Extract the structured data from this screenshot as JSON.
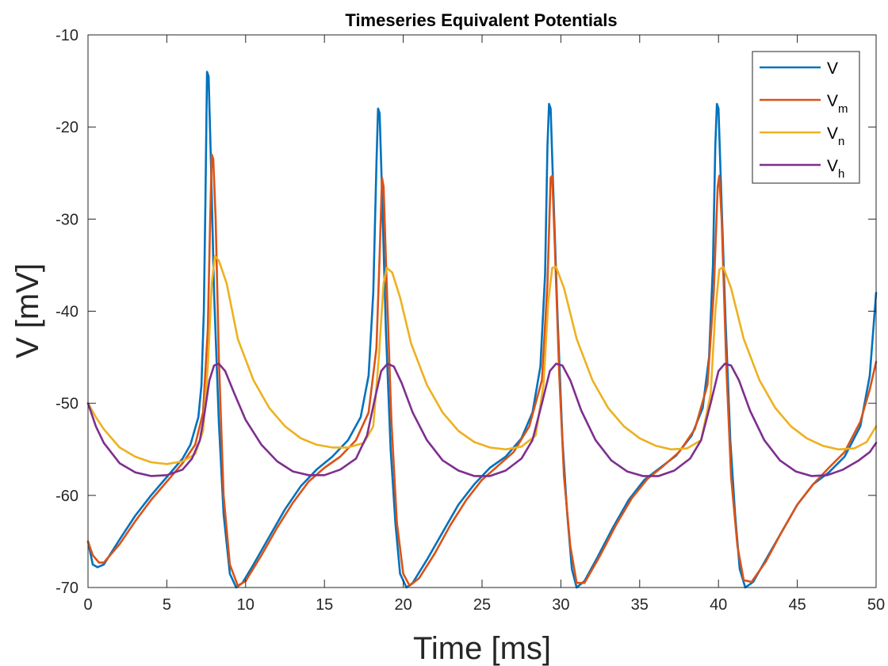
{
  "chart_data": {
    "type": "line",
    "title": "Timeseries Equivalent Potentials",
    "xlabel": "Time [ms]",
    "ylabel": "V [mV]",
    "xlim": [
      0,
      50
    ],
    "ylim": [
      -70,
      -10
    ],
    "xticks": [
      0,
      5,
      10,
      15,
      20,
      25,
      30,
      35,
      40,
      45,
      50
    ],
    "yticks": [
      -70,
      -60,
      -50,
      -40,
      -30,
      -20,
      -10
    ],
    "xtick_labels": [
      "0",
      "5",
      "10",
      "15",
      "20",
      "25",
      "30",
      "35",
      "40",
      "45",
      "50"
    ],
    "ytick_labels": [
      "-70",
      "-60",
      "-50",
      "-40",
      "-30",
      "-20",
      "-10"
    ],
    "grid": false,
    "legend_position": "top-right",
    "series": [
      {
        "name": "V",
        "legend_main": "V",
        "legend_sub": "",
        "color": "#0072BD",
        "points": [
          [
            0,
            -65
          ],
          [
            0.3,
            -67.5
          ],
          [
            0.6,
            -67.8
          ],
          [
            1,
            -67.5
          ],
          [
            2,
            -64.8
          ],
          [
            3,
            -62.2
          ],
          [
            4,
            -60
          ],
          [
            5,
            -58
          ],
          [
            6,
            -56
          ],
          [
            6.5,
            -54.5
          ],
          [
            7,
            -51.5
          ],
          [
            7.2,
            -48
          ],
          [
            7.35,
            -40
          ],
          [
            7.45,
            -28
          ],
          [
            7.55,
            -14
          ],
          [
            7.65,
            -14.5
          ],
          [
            7.8,
            -24
          ],
          [
            8,
            -38
          ],
          [
            8.3,
            -52
          ],
          [
            8.6,
            -62
          ],
          [
            9,
            -68.5
          ],
          [
            9.4,
            -70
          ],
          [
            9.8,
            -69.5
          ],
          [
            10.5,
            -67.5
          ],
          [
            11.5,
            -64.5
          ],
          [
            12.5,
            -61.5
          ],
          [
            13.5,
            -59
          ],
          [
            14.5,
            -57.2
          ],
          [
            15.5,
            -55.8
          ],
          [
            16.5,
            -54
          ],
          [
            17.3,
            -51.5
          ],
          [
            17.8,
            -47
          ],
          [
            18.1,
            -38
          ],
          [
            18.3,
            -24
          ],
          [
            18.4,
            -18
          ],
          [
            18.5,
            -18.5
          ],
          [
            18.65,
            -27
          ],
          [
            18.9,
            -42
          ],
          [
            19.2,
            -55
          ],
          [
            19.5,
            -63
          ],
          [
            19.8,
            -68.5
          ],
          [
            20.2,
            -70
          ],
          [
            20.6,
            -69.5
          ],
          [
            21.5,
            -67
          ],
          [
            22.5,
            -64
          ],
          [
            23.5,
            -61
          ],
          [
            24.5,
            -58.8
          ],
          [
            25.5,
            -57
          ],
          [
            26.5,
            -55.8
          ],
          [
            27.5,
            -53.8
          ],
          [
            28.2,
            -51
          ],
          [
            28.7,
            -46
          ],
          [
            29,
            -36
          ],
          [
            29.15,
            -22
          ],
          [
            29.25,
            -17.5
          ],
          [
            29.35,
            -18
          ],
          [
            29.5,
            -26
          ],
          [
            29.8,
            -41
          ],
          [
            30.1,
            -54
          ],
          [
            30.4,
            -62
          ],
          [
            30.7,
            -68
          ],
          [
            31,
            -70
          ],
          [
            31.5,
            -69.3
          ],
          [
            32.3,
            -66.8
          ],
          [
            33.3,
            -63.5
          ],
          [
            34.3,
            -60.5
          ],
          [
            35.3,
            -58.3
          ],
          [
            36.3,
            -57
          ],
          [
            37.3,
            -55.7
          ],
          [
            38.3,
            -53.5
          ],
          [
            39,
            -50.5
          ],
          [
            39.4,
            -45
          ],
          [
            39.65,
            -35
          ],
          [
            39.8,
            -22
          ],
          [
            39.9,
            -17.5
          ],
          [
            40,
            -18
          ],
          [
            40.15,
            -26
          ],
          [
            40.45,
            -41
          ],
          [
            40.75,
            -54
          ],
          [
            41.05,
            -62
          ],
          [
            41.35,
            -68
          ],
          [
            41.7,
            -70
          ],
          [
            42.2,
            -69.4
          ],
          [
            43,
            -67
          ],
          [
            44,
            -64
          ],
          [
            45,
            -61
          ],
          [
            46,
            -58.8
          ],
          [
            47,
            -57.5
          ],
          [
            48,
            -55.8
          ],
          [
            49,
            -52.5
          ],
          [
            49.6,
            -47
          ],
          [
            50,
            -38
          ]
        ]
      },
      {
        "name": "V_m",
        "legend_main": "V",
        "legend_sub": "m",
        "color": "#D95319",
        "points": [
          [
            0,
            -65
          ],
          [
            0.3,
            -66.5
          ],
          [
            0.7,
            -67.3
          ],
          [
            1,
            -67.3
          ],
          [
            2,
            -65.3
          ],
          [
            3,
            -62.8
          ],
          [
            4,
            -60.5
          ],
          [
            5,
            -58.5
          ],
          [
            6,
            -56.5
          ],
          [
            6.8,
            -54.5
          ],
          [
            7.3,
            -51
          ],
          [
            7.6,
            -42
          ],
          [
            7.75,
            -30
          ],
          [
            7.85,
            -23
          ],
          [
            7.95,
            -23.5
          ],
          [
            8.1,
            -30
          ],
          [
            8.3,
            -45
          ],
          [
            8.6,
            -60
          ],
          [
            9,
            -67.5
          ],
          [
            9.5,
            -69.8
          ],
          [
            10,
            -69.3
          ],
          [
            11,
            -66.5
          ],
          [
            12,
            -63.5
          ],
          [
            13,
            -60.8
          ],
          [
            14,
            -58.5
          ],
          [
            15,
            -57
          ],
          [
            16,
            -55.8
          ],
          [
            17,
            -54
          ],
          [
            17.8,
            -51
          ],
          [
            18.3,
            -44
          ],
          [
            18.5,
            -34
          ],
          [
            18.65,
            -25.5
          ],
          [
            18.75,
            -26.5
          ],
          [
            18.95,
            -37
          ],
          [
            19.25,
            -52
          ],
          [
            19.6,
            -63
          ],
          [
            20,
            -68.5
          ],
          [
            20.4,
            -69.8
          ],
          [
            21,
            -69
          ],
          [
            22,
            -66.3
          ],
          [
            23,
            -63.2
          ],
          [
            24,
            -60.5
          ],
          [
            25,
            -58.3
          ],
          [
            26,
            -56.8
          ],
          [
            27,
            -55.3
          ],
          [
            28,
            -52.5
          ],
          [
            28.8,
            -47.5
          ],
          [
            29.15,
            -37
          ],
          [
            29.35,
            -25.5
          ],
          [
            29.45,
            -25.3
          ],
          [
            29.6,
            -32
          ],
          [
            29.9,
            -47
          ],
          [
            30.2,
            -58
          ],
          [
            30.6,
            -65.5
          ],
          [
            31,
            -69.5
          ],
          [
            31.5,
            -69.5
          ],
          [
            32.5,
            -66.5
          ],
          [
            33.5,
            -63.2
          ],
          [
            34.5,
            -60.3
          ],
          [
            35.5,
            -58.2
          ],
          [
            36.5,
            -56.8
          ],
          [
            37.5,
            -55.3
          ],
          [
            38.5,
            -52.8
          ],
          [
            39.3,
            -48
          ],
          [
            39.7,
            -38
          ],
          [
            39.95,
            -26.5
          ],
          [
            40.05,
            -25.3
          ],
          [
            40.2,
            -30
          ],
          [
            40.5,
            -46
          ],
          [
            40.8,
            -58
          ],
          [
            41.2,
            -65.5
          ],
          [
            41.6,
            -69.2
          ],
          [
            42.1,
            -69.4
          ],
          [
            43,
            -67.2
          ],
          [
            44,
            -64
          ],
          [
            45,
            -61
          ],
          [
            46,
            -58.8
          ],
          [
            47,
            -57
          ],
          [
            48,
            -55.3
          ],
          [
            49,
            -52
          ],
          [
            49.6,
            -48.5
          ],
          [
            50,
            -45.5
          ]
        ]
      },
      {
        "name": "V_n",
        "legend_main": "V",
        "legend_sub": "n",
        "color": "#EDB120",
        "points": [
          [
            0,
            -50
          ],
          [
            0.5,
            -51.5
          ],
          [
            1,
            -52.8
          ],
          [
            2,
            -54.8
          ],
          [
            3,
            -55.8
          ],
          [
            4,
            -56.4
          ],
          [
            5,
            -56.6
          ],
          [
            6,
            -56.3
          ],
          [
            6.8,
            -55.5
          ],
          [
            7.3,
            -53
          ],
          [
            7.6,
            -46
          ],
          [
            7.85,
            -37
          ],
          [
            8.05,
            -34
          ],
          [
            8.3,
            -34.5
          ],
          [
            8.8,
            -37
          ],
          [
            9.5,
            -43
          ],
          [
            10.5,
            -47.5
          ],
          [
            11.5,
            -50.5
          ],
          [
            12.5,
            -52.5
          ],
          [
            13.5,
            -53.8
          ],
          [
            14.5,
            -54.5
          ],
          [
            15.5,
            -54.8
          ],
          [
            16.5,
            -54.8
          ],
          [
            17.5,
            -54.3
          ],
          [
            18.1,
            -52.5
          ],
          [
            18.45,
            -45
          ],
          [
            18.75,
            -37
          ],
          [
            18.95,
            -35.3
          ],
          [
            19.3,
            -35.8
          ],
          [
            19.8,
            -38.5
          ],
          [
            20.5,
            -43.5
          ],
          [
            21.5,
            -48
          ],
          [
            22.5,
            -51
          ],
          [
            23.5,
            -53
          ],
          [
            24.5,
            -54.2
          ],
          [
            25.5,
            -54.8
          ],
          [
            26.5,
            -55
          ],
          [
            27.5,
            -54.7
          ],
          [
            28.4,
            -53.5
          ],
          [
            28.9,
            -48
          ],
          [
            29.2,
            -39
          ],
          [
            29.45,
            -35.3
          ],
          [
            29.7,
            -35.2
          ],
          [
            30.2,
            -37.5
          ],
          [
            31,
            -43
          ],
          [
            32,
            -47.5
          ],
          [
            33,
            -50.5
          ],
          [
            34,
            -52.5
          ],
          [
            35,
            -53.8
          ],
          [
            36,
            -54.6
          ],
          [
            37,
            -55
          ],
          [
            38,
            -54.9
          ],
          [
            38.9,
            -54
          ],
          [
            39.5,
            -49
          ],
          [
            39.8,
            -40
          ],
          [
            40.05,
            -35.5
          ],
          [
            40.3,
            -35.2
          ],
          [
            40.8,
            -37.5
          ],
          [
            41.6,
            -43
          ],
          [
            42.6,
            -47.5
          ],
          [
            43.6,
            -50.5
          ],
          [
            44.6,
            -52.5
          ],
          [
            45.6,
            -53.8
          ],
          [
            46.6,
            -54.6
          ],
          [
            47.6,
            -55
          ],
          [
            48.6,
            -54.9
          ],
          [
            49.4,
            -54.2
          ],
          [
            50,
            -52.5
          ]
        ]
      },
      {
        "name": "V_h",
        "legend_main": "V",
        "legend_sub": "h",
        "color": "#7E2F8E",
        "points": [
          [
            0,
            -50
          ],
          [
            0.5,
            -52.5
          ],
          [
            1,
            -54.3
          ],
          [
            2,
            -56.5
          ],
          [
            3,
            -57.5
          ],
          [
            4,
            -57.9
          ],
          [
            5,
            -57.8
          ],
          [
            6,
            -57.2
          ],
          [
            6.6,
            -56
          ],
          [
            7.1,
            -54
          ],
          [
            7.4,
            -51
          ],
          [
            7.7,
            -47.5
          ],
          [
            8,
            -45.9
          ],
          [
            8.3,
            -45.7
          ],
          [
            8.7,
            -46.5
          ],
          [
            9.3,
            -49
          ],
          [
            10,
            -51.8
          ],
          [
            11,
            -54.5
          ],
          [
            12,
            -56.3
          ],
          [
            13,
            -57.4
          ],
          [
            14,
            -57.8
          ],
          [
            15,
            -57.8
          ],
          [
            16,
            -57.2
          ],
          [
            17,
            -56
          ],
          [
            17.7,
            -53.5
          ],
          [
            18.2,
            -49.5
          ],
          [
            18.6,
            -46.5
          ],
          [
            19,
            -45.7
          ],
          [
            19.4,
            -46
          ],
          [
            19.9,
            -47.8
          ],
          [
            20.6,
            -51
          ],
          [
            21.5,
            -54
          ],
          [
            22.5,
            -56.2
          ],
          [
            23.5,
            -57.3
          ],
          [
            24.5,
            -57.9
          ],
          [
            25.5,
            -57.9
          ],
          [
            26.5,
            -57.3
          ],
          [
            27.5,
            -56
          ],
          [
            28.2,
            -54
          ],
          [
            28.8,
            -50
          ],
          [
            29.3,
            -46.5
          ],
          [
            29.7,
            -45.7
          ],
          [
            30.1,
            -45.9
          ],
          [
            30.6,
            -47.5
          ],
          [
            31.3,
            -50.8
          ],
          [
            32.2,
            -54
          ],
          [
            33.2,
            -56.2
          ],
          [
            34.2,
            -57.4
          ],
          [
            35.2,
            -57.9
          ],
          [
            36.2,
            -57.9
          ],
          [
            37.2,
            -57.3
          ],
          [
            38.2,
            -56
          ],
          [
            38.9,
            -54
          ],
          [
            39.5,
            -50
          ],
          [
            40,
            -46.5
          ],
          [
            40.4,
            -45.7
          ],
          [
            40.8,
            -45.9
          ],
          [
            41.3,
            -47.5
          ],
          [
            42,
            -50.8
          ],
          [
            42.9,
            -54
          ],
          [
            43.9,
            -56.2
          ],
          [
            44.9,
            -57.4
          ],
          [
            45.9,
            -57.9
          ],
          [
            46.9,
            -57.8
          ],
          [
            47.9,
            -57.2
          ],
          [
            48.9,
            -56.2
          ],
          [
            49.6,
            -55.3
          ],
          [
            50,
            -54.3
          ]
        ]
      }
    ]
  }
}
